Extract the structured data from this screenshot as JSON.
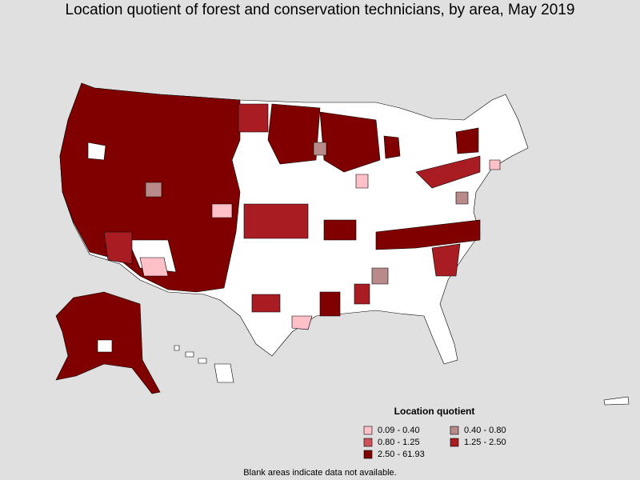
{
  "title": "Location quotient of forest and conservation technicians, by area, May 2019",
  "legend": {
    "title": "Location quotient",
    "items": [
      {
        "label": "0.09 - 0.40",
        "color": "#ffc0c8"
      },
      {
        "label": "0.40 - 0.80",
        "color": "#b88a8a"
      },
      {
        "label": "0.80 - 1.25",
        "color": "#d0505a"
      },
      {
        "label": "1.25 - 2.50",
        "color": "#a81c22"
      },
      {
        "label": "2.50 - 61.93",
        "color": "#800000"
      }
    ]
  },
  "footnote": "Blank areas indicate data not available."
}
